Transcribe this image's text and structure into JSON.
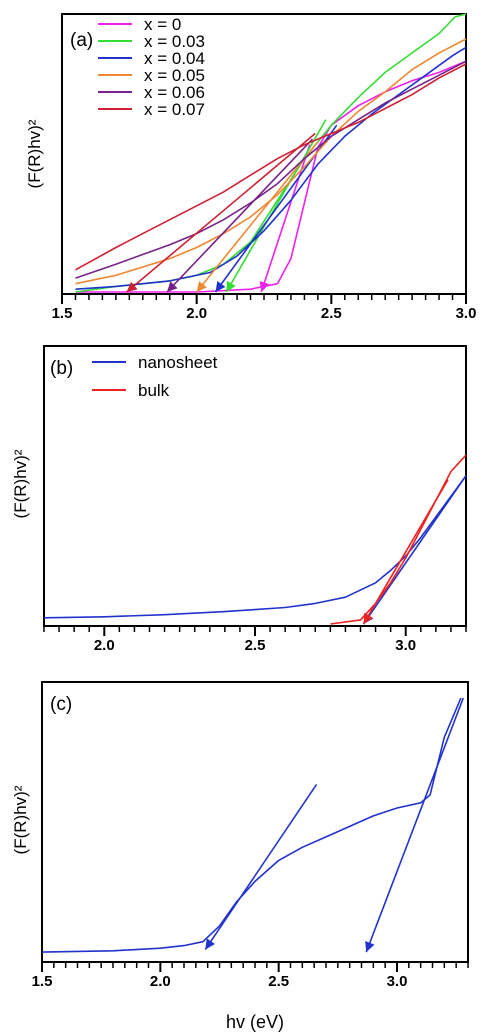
{
  "figure": {
    "xlabel": "hv (eV)"
  },
  "chart_data": [
    {
      "type": "line",
      "panel_label": "(a)",
      "ylabel": "(F(R)hv)²",
      "xlim": [
        1.5,
        3.0
      ],
      "x_ticks": [
        "1.5",
        "2.0",
        "2.5",
        "3.0"
      ],
      "ylim": [
        0,
        1
      ],
      "legend_position": "top-left",
      "series": [
        {
          "name": "x = 0",
          "color": "#ee22ee",
          "x": [
            1.55,
            1.8,
            2.0,
            2.2,
            2.3,
            2.35,
            2.4,
            2.45,
            2.5,
            2.6,
            2.7,
            2.8,
            2.9,
            3.0
          ],
          "y": [
            0.0,
            0.0,
            0.0,
            0.01,
            0.03,
            0.12,
            0.32,
            0.52,
            0.6,
            0.67,
            0.72,
            0.76,
            0.79,
            0.83
          ],
          "tangent": [
            [
              2.24,
              0.0
            ],
            [
              2.42,
              0.53
            ]
          ],
          "edge": 2.25
        },
        {
          "name": "x = 0.03",
          "color": "#33dd33",
          "x": [
            1.55,
            1.7,
            1.9,
            2.0,
            2.1,
            2.2,
            2.3,
            2.4,
            2.5,
            2.6,
            2.7,
            2.8,
            2.9,
            2.96,
            3.0
          ],
          "y": [
            0.0,
            0.02,
            0.04,
            0.06,
            0.1,
            0.18,
            0.33,
            0.48,
            0.6,
            0.7,
            0.79,
            0.86,
            0.93,
            0.99,
            1.0
          ],
          "tangent": [
            [
              2.11,
              0.0
            ],
            [
              2.48,
              0.62
            ]
          ],
          "edge": 2.11
        },
        {
          "name": "x = 0.04",
          "color": "#2233cc",
          "x": [
            1.55,
            1.7,
            1.9,
            2.05,
            2.15,
            2.25,
            2.35,
            2.45,
            2.55,
            2.65,
            2.75,
            2.85,
            2.95,
            3.0
          ],
          "y": [
            0.01,
            0.02,
            0.04,
            0.07,
            0.13,
            0.22,
            0.33,
            0.46,
            0.56,
            0.64,
            0.71,
            0.78,
            0.85,
            0.88
          ],
          "tangent": [
            [
              2.07,
              0.0
            ],
            [
              2.52,
              0.6
            ]
          ],
          "edge": 2.08
        },
        {
          "name": "x = 0.05",
          "color": "#ee8833",
          "x": [
            1.55,
            1.7,
            1.9,
            2.0,
            2.1,
            2.2,
            2.3,
            2.4,
            2.5,
            2.6,
            2.7,
            2.8,
            2.9,
            3.0
          ],
          "y": [
            0.03,
            0.06,
            0.12,
            0.16,
            0.21,
            0.27,
            0.35,
            0.45,
            0.56,
            0.65,
            0.72,
            0.8,
            0.86,
            0.91
          ],
          "tangent": [
            [
              2.0,
              0.0
            ],
            [
              2.45,
              0.54
            ]
          ],
          "edge": 2.0
        },
        {
          "name": "x = 0.06",
          "color": "#772288",
          "x": [
            1.55,
            1.7,
            1.9,
            2.0,
            2.1,
            2.2,
            2.3,
            2.4,
            2.5,
            2.6,
            2.7,
            2.8,
            2.9,
            3.0
          ],
          "y": [
            0.05,
            0.1,
            0.17,
            0.21,
            0.26,
            0.32,
            0.39,
            0.48,
            0.56,
            0.62,
            0.68,
            0.73,
            0.78,
            0.83
          ],
          "tangent": [
            [
              1.89,
              0.0
            ],
            [
              2.43,
              0.55
            ]
          ],
          "edge": 1.89
        },
        {
          "name": "x = 0.07",
          "color": "#cc2233",
          "x": [
            1.55,
            1.7,
            1.8,
            1.9,
            2.0,
            2.1,
            2.2,
            2.3,
            2.4,
            2.5,
            2.6,
            2.7,
            2.8,
            2.9,
            3.0
          ],
          "y": [
            0.08,
            0.16,
            0.21,
            0.26,
            0.31,
            0.36,
            0.42,
            0.48,
            0.53,
            0.57,
            0.61,
            0.66,
            0.71,
            0.77,
            0.82
          ],
          "tangent": [
            [
              1.74,
              0.0
            ],
            [
              2.44,
              0.57
            ]
          ],
          "edge": 1.74
        }
      ]
    },
    {
      "type": "line",
      "panel_label": "(b)",
      "ylabel": "(F(R)hv)²",
      "xlim": [
        1.8,
        3.2
      ],
      "x_ticks": [
        "2.0",
        "2.5",
        "3.0"
      ],
      "ylim": [
        0,
        1
      ],
      "legend_position": "top-left",
      "series": [
        {
          "name": "nanosheet",
          "color": "#2233cc",
          "x": [
            1.8,
            2.0,
            2.2,
            2.4,
            2.5,
            2.6,
            2.7,
            2.8,
            2.9,
            2.95,
            3.0,
            3.05,
            3.1,
            3.15,
            3.2
          ],
          "y": [
            0.03,
            0.035,
            0.045,
            0.06,
            0.07,
            0.08,
            0.1,
            0.13,
            0.2,
            0.26,
            0.33,
            0.42,
            0.52,
            0.62,
            0.72
          ],
          "tangent": [
            [
              2.86,
              0.0
            ],
            [
              3.2,
              0.72
            ]
          ],
          "edge": 2.86
        },
        {
          "name": "bulk",
          "color": "#ee2222",
          "x": [
            2.75,
            2.85,
            2.9,
            2.95,
            3.0,
            3.05,
            3.1,
            3.15,
            3.2
          ],
          "y": [
            0.0,
            0.02,
            0.1,
            0.2,
            0.32,
            0.46,
            0.6,
            0.74,
            0.82
          ],
          "tangent": [
            [
              2.86,
              0.0
            ],
            [
              3.14,
              0.7
            ]
          ],
          "edge": 2.87
        }
      ]
    },
    {
      "type": "line",
      "panel_label": "(c)",
      "ylabel": "(F(R)hv)²",
      "xlim": [
        1.5,
        3.3
      ],
      "x_ticks": [
        "1.5",
        "2.0",
        "2.5",
        "3.0"
      ],
      "ylim": [
        0,
        1
      ],
      "legend_position": "none",
      "series": [
        {
          "name": "",
          "color": "#2233cc",
          "x": [
            1.5,
            1.8,
            2.0,
            2.1,
            2.18,
            2.25,
            2.32,
            2.4,
            2.5,
            2.6,
            2.7,
            2.8,
            2.9,
            3.0,
            3.1,
            3.14,
            3.2,
            3.27
          ],
          "y": [
            0.03,
            0.035,
            0.045,
            0.055,
            0.07,
            0.13,
            0.22,
            0.3,
            0.38,
            0.43,
            0.47,
            0.51,
            0.55,
            0.58,
            0.6,
            0.63,
            0.85,
            1.0
          ],
          "tangents": [
            [
              [
                2.19,
                0.04
              ],
              [
                2.66,
                0.67
              ]
            ],
            [
              [
                2.87,
                0.03
              ],
              [
                3.28,
                1.0
              ]
            ]
          ],
          "edges": [
            2.19,
            2.87
          ]
        }
      ]
    }
  ]
}
